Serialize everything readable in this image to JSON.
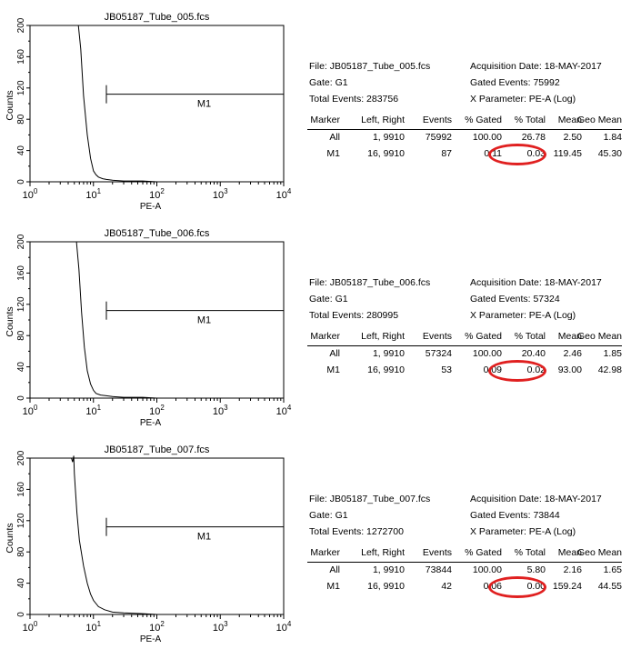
{
  "accent": "#e02020",
  "panels": [
    {
      "title": "JB05187_Tube_005.fcs",
      "file_text": "File: JB05187_Tube_005.fcs",
      "gate_text": "Gate: G1",
      "total_text": "Total Events: 283756",
      "acq_text": "Acquisition Date: 18-MAY-2017",
      "gated_text": "Gated Events: 75992",
      "xparam_text": "X Parameter: PE-A (Log)",
      "headers": [
        "Marker",
        "Left, Right",
        "Events",
        "% Gated",
        "% Total",
        "Mean",
        "Geo Mean"
      ],
      "rows": [
        {
          "marker": "All",
          "lr": "1,  9910",
          "events": "75992",
          "gated": "100.00",
          "total": "26.78",
          "mean": "2.50",
          "geo": "1.84"
        },
        {
          "marker": "M1",
          "lr": "16,  9910",
          "events": "87",
          "gated": "0.11",
          "total": "0.03",
          "mean": "119.45",
          "geo": "45.30"
        }
      ]
    },
    {
      "title": "JB05187_Tube_006.fcs",
      "file_text": "File: JB05187_Tube_006.fcs",
      "gate_text": "Gate: G1",
      "total_text": "Total Events: 280995",
      "acq_text": "Acquisition Date: 18-MAY-2017",
      "gated_text": "Gated Events: 57324",
      "xparam_text": "X Parameter: PE-A (Log)",
      "headers": [
        "Marker",
        "Left, Right",
        "Events",
        "% Gated",
        "% Total",
        "Mean",
        "Geo Mean"
      ],
      "rows": [
        {
          "marker": "All",
          "lr": "1,  9910",
          "events": "57324",
          "gated": "100.00",
          "total": "20.40",
          "mean": "2.46",
          "geo": "1.85"
        },
        {
          "marker": "M1",
          "lr": "16,  9910",
          "events": "53",
          "gated": "0.09",
          "total": "0.02",
          "mean": "93.00",
          "geo": "42.98"
        }
      ]
    },
    {
      "title": "JB05187_Tube_007.fcs",
      "file_text": "File: JB05187_Tube_007.fcs",
      "gate_text": "Gate: G1",
      "total_text": "Total Events: 1272700",
      "acq_text": "Acquisition Date: 18-MAY-2017",
      "gated_text": "Gated Events: 73844",
      "xparam_text": "X Parameter: PE-A (Log)",
      "headers": [
        "Marker",
        "Left, Right",
        "Events",
        "% Gated",
        "% Total",
        "Mean",
        "Geo Mean"
      ],
      "rows": [
        {
          "marker": "All",
          "lr": "1,  9910",
          "events": "73844",
          "gated": "100.00",
          "total": "5.80",
          "mean": "2.16",
          "geo": "1.65"
        },
        {
          "marker": "M1",
          "lr": "16,  9910",
          "events": "42",
          "gated": "0.06",
          "total": "0.00",
          "mean": "159.24",
          "geo": "44.55"
        }
      ]
    }
  ],
  "chart_data": [
    {
      "type": "line",
      "title": "JB05187_Tube_005.fcs",
      "xlabel": "PE-A",
      "ylabel": "Counts",
      "xscale": "log",
      "xlim": [
        1,
        10000
      ],
      "ylim": [
        0,
        200
      ],
      "xticks": [
        "10",
        "10",
        "10",
        "10",
        "10"
      ],
      "xtick_exps": [
        "0",
        "1",
        "2",
        "3",
        "4"
      ],
      "yticks": [
        "0",
        "40",
        "80",
        "120",
        "160",
        "200"
      ],
      "marker": {
        "label": "M1",
        "x_range": [
          16,
          10000
        ],
        "y": 112
      },
      "series": [
        {
          "x": [
            1,
            3,
            5,
            5.8,
            6.3,
            7,
            8,
            9,
            10,
            11,
            12,
            14,
            16,
            20,
            30,
            60,
            100,
            1000,
            10000
          ],
          "y": [
            200,
            200,
            200,
            200,
            170,
            110,
            60,
            30,
            14,
            9,
            6,
            4,
            3,
            2,
            1,
            1,
            0,
            0,
            0
          ]
        }
      ]
    },
    {
      "type": "line",
      "title": "JB05187_Tube_006.fcs",
      "xlabel": "PE-A",
      "ylabel": "Counts",
      "xscale": "log",
      "xlim": [
        1,
        10000
      ],
      "ylim": [
        0,
        200
      ],
      "xticks": [
        "10",
        "10",
        "10",
        "10",
        "10"
      ],
      "xtick_exps": [
        "0",
        "1",
        "2",
        "3",
        "4"
      ],
      "yticks": [
        "0",
        "40",
        "80",
        "120",
        "160",
        "200"
      ],
      "marker": {
        "label": "M1",
        "x_range": [
          16,
          10000
        ],
        "y": 112
      },
      "series": [
        {
          "x": [
            1,
            3,
            5,
            5.4,
            5.9,
            6.5,
            7.2,
            8,
            9,
            10,
            11,
            13,
            16,
            20,
            30,
            60,
            100,
            1000,
            10000
          ],
          "y": [
            200,
            200,
            200,
            200,
            165,
            110,
            65,
            35,
            18,
            10,
            6,
            4,
            3,
            2,
            1,
            1,
            0,
            0,
            0
          ]
        }
      ]
    },
    {
      "type": "line",
      "title": "JB05187_Tube_007.fcs",
      "xlabel": "PE-A",
      "ylabel": "Counts",
      "xscale": "log",
      "xlim": [
        1,
        10000
      ],
      "ylim": [
        0,
        200
      ],
      "xticks": [
        "10",
        "10",
        "10",
        "10",
        "10"
      ],
      "xtick_exps": [
        "0",
        "1",
        "2",
        "3",
        "4"
      ],
      "yticks": [
        "0",
        "40",
        "80",
        "120",
        "160",
        "200"
      ],
      "marker": {
        "label": "M1",
        "x_range": [
          16,
          10000
        ],
        "y": 112
      },
      "series": [
        {
          "x": [
            1,
            3,
            4.5,
            4.7,
            4.9,
            5.0,
            5.2,
            5.5,
            6,
            7,
            8,
            9,
            10,
            12,
            15,
            20,
            30,
            60,
            100,
            1000,
            10000
          ],
          "y": [
            200,
            200,
            200,
            195,
            205,
            180,
            160,
            130,
            95,
            62,
            40,
            26,
            18,
            10,
            6,
            3,
            2,
            1,
            0,
            0,
            0
          ]
        }
      ]
    }
  ]
}
